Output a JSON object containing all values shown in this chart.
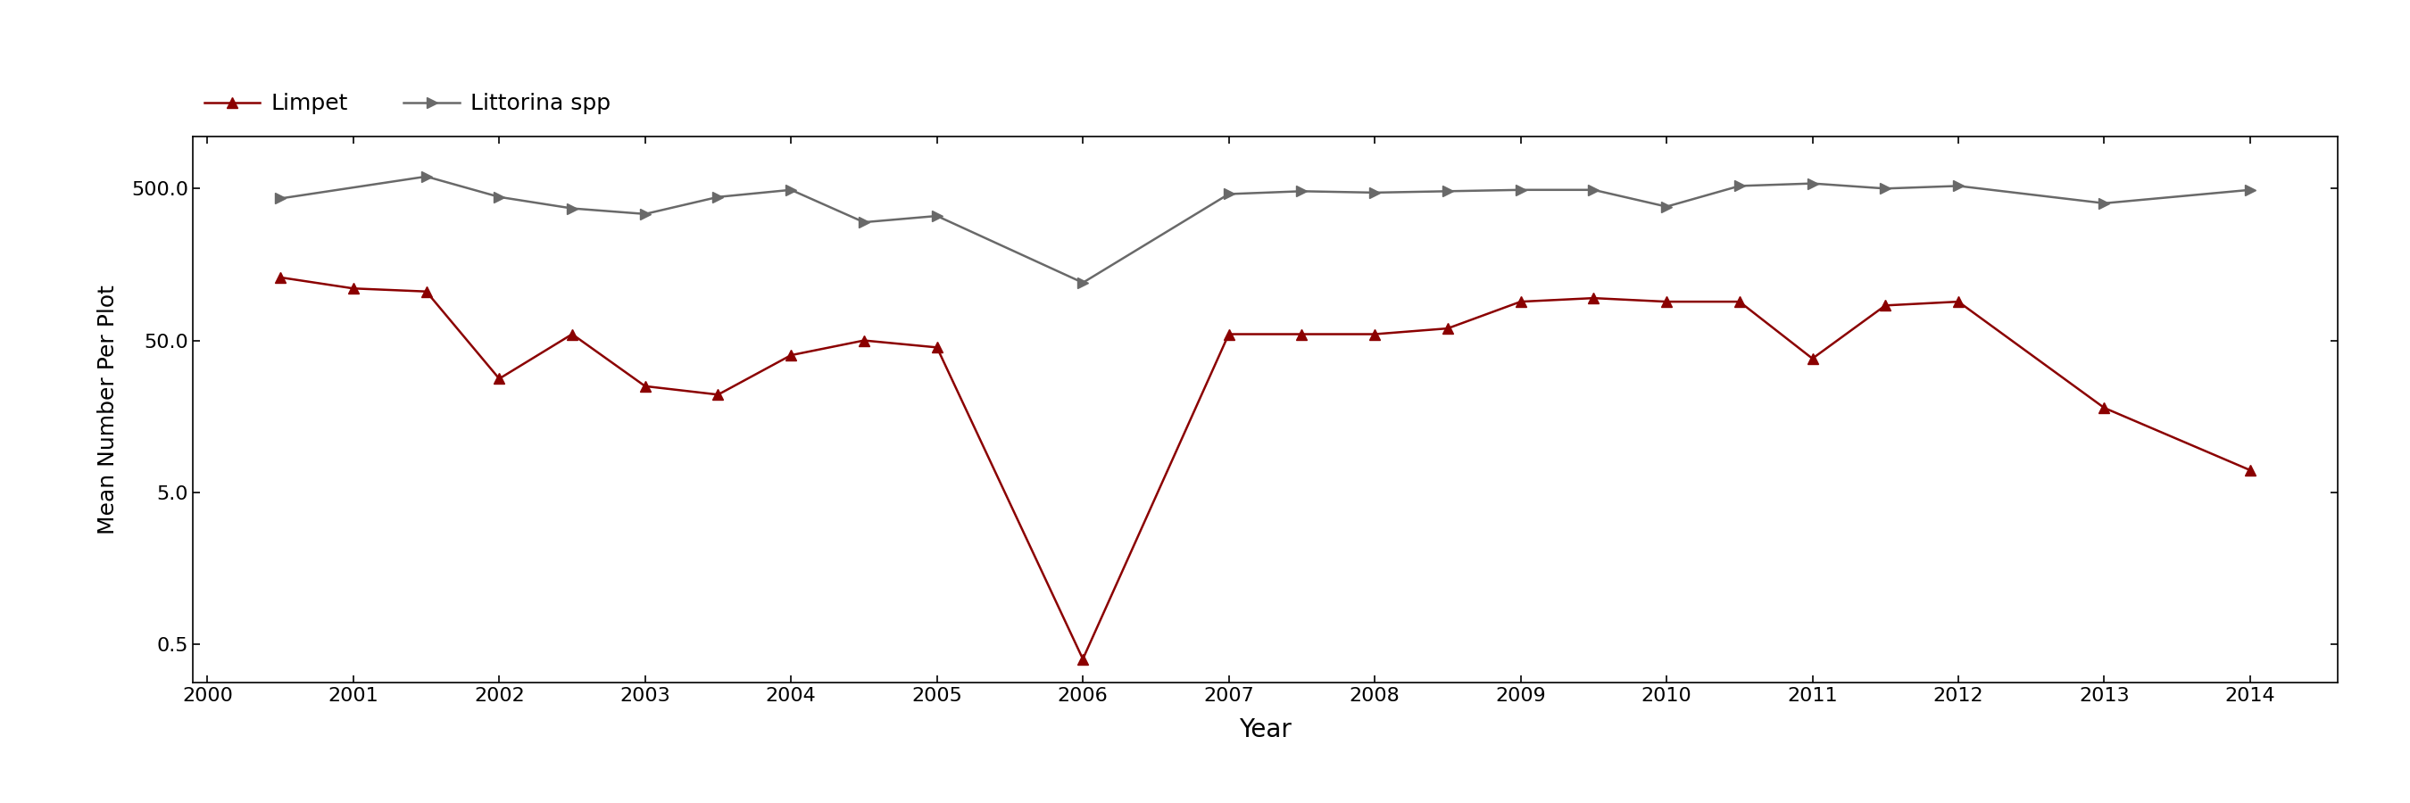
{
  "years_limpet": [
    2000.5,
    2001.0,
    2001.5,
    2002.0,
    2002.5,
    2003.0,
    2003.5,
    2004.0,
    2004.5,
    2005.0,
    2006.0,
    2007.0,
    2007.5,
    2008.0,
    2008.5,
    2009.0,
    2009.5,
    2010.0,
    2010.5,
    2011.0,
    2011.5,
    2012.0,
    2013.0,
    2014.0
  ],
  "limpet_values": [
    130,
    110,
    105,
    28,
    55,
    25,
    22,
    40,
    50,
    45,
    0.4,
    55,
    55,
    55,
    60,
    90,
    95,
    90,
    90,
    38,
    85,
    90,
    18,
    7
  ],
  "years_littorina": [
    2000.5,
    2001.5,
    2002.0,
    2002.5,
    2003.0,
    2003.5,
    2004.0,
    2004.5,
    2005.0,
    2006.0,
    2007.0,
    2007.5,
    2008.0,
    2008.5,
    2009.0,
    2009.5,
    2010.0,
    2010.5,
    2011.0,
    2011.5,
    2012.0,
    2013.0,
    2014.0
  ],
  "littorina_values": [
    430,
    600,
    440,
    370,
    340,
    440,
    490,
    300,
    330,
    120,
    460,
    480,
    470,
    480,
    490,
    490,
    380,
    520,
    540,
    500,
    520,
    400,
    490
  ],
  "limpet_color": "#8B0000",
  "littorina_color": "#696969",
  "xlabel": "Year",
  "ylabel": "Mean Number Per Plot",
  "legend_limpet": "Limpet",
  "legend_littorina": "Littorina spp",
  "yticks": [
    0.5,
    5.0,
    50.0,
    500.0
  ],
  "ytick_labels": [
    "0.5",
    "5.0",
    "50.0",
    "500.0"
  ],
  "xlim": [
    1999.9,
    2014.6
  ],
  "ylim": [
    0.28,
    1100
  ],
  "xticks": [
    2000,
    2001,
    2002,
    2003,
    2004,
    2005,
    2006,
    2007,
    2008,
    2009,
    2010,
    2011,
    2012,
    2013,
    2014
  ],
  "marker_limpet": "^",
  "marker_littorina": ">"
}
